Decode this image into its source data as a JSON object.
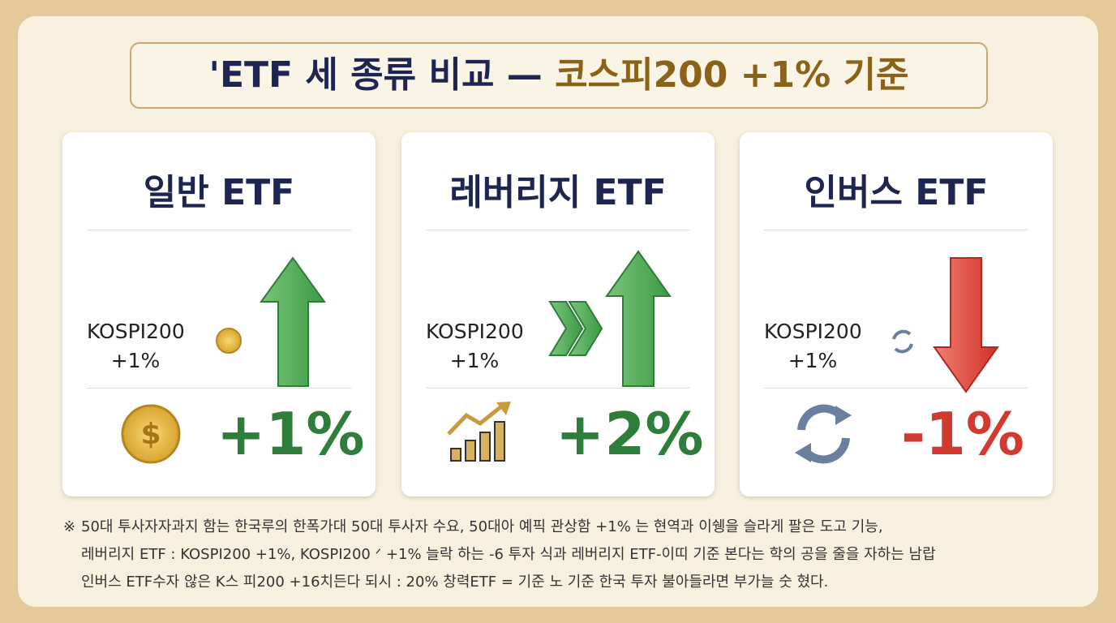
{
  "title": {
    "main": "'ETF 세 종류 비교 —",
    "highlight": "코스피200 +1% 기준"
  },
  "cards": [
    {
      "name": "일반 ETF",
      "input": [
        "KOSPI200",
        "+1%"
      ],
      "result": "+1%"
    },
    {
      "name": "레버리지 ETF",
      "input": [
        "KOSPI200",
        "+1%"
      ],
      "result": "+2%"
    },
    {
      "name": "인버스 ETF",
      "input": [
        "KOSPI200",
        "+1%"
      ],
      "result": "-1%"
    }
  ],
  "footnote": {
    "mark": "※",
    "lines": [
      "50대 투사자자과지 함는 한국루의 한폭가대 50대 투사자 수요, 50대아 예픽 관상함 +1% 는 현역과 이쉥을 슬라게 팔은 도고 기능,",
      "레버리지 ETF : KOSPI200 +1%, KOSPI200 ᐟ +1% 늘락 하는 -6 투자 식과 레버리지 ETF-이띠 기준 본다는 학의 공을 줄을 자하는 남랍",
      "인버스 ETF수자 않은 K스 피200 +16치든다 되시 : 20% 창력ETF = 기준 노 기준 한국 투자 불아들라면 부가늘 숫 혔다."
    ]
  }
}
